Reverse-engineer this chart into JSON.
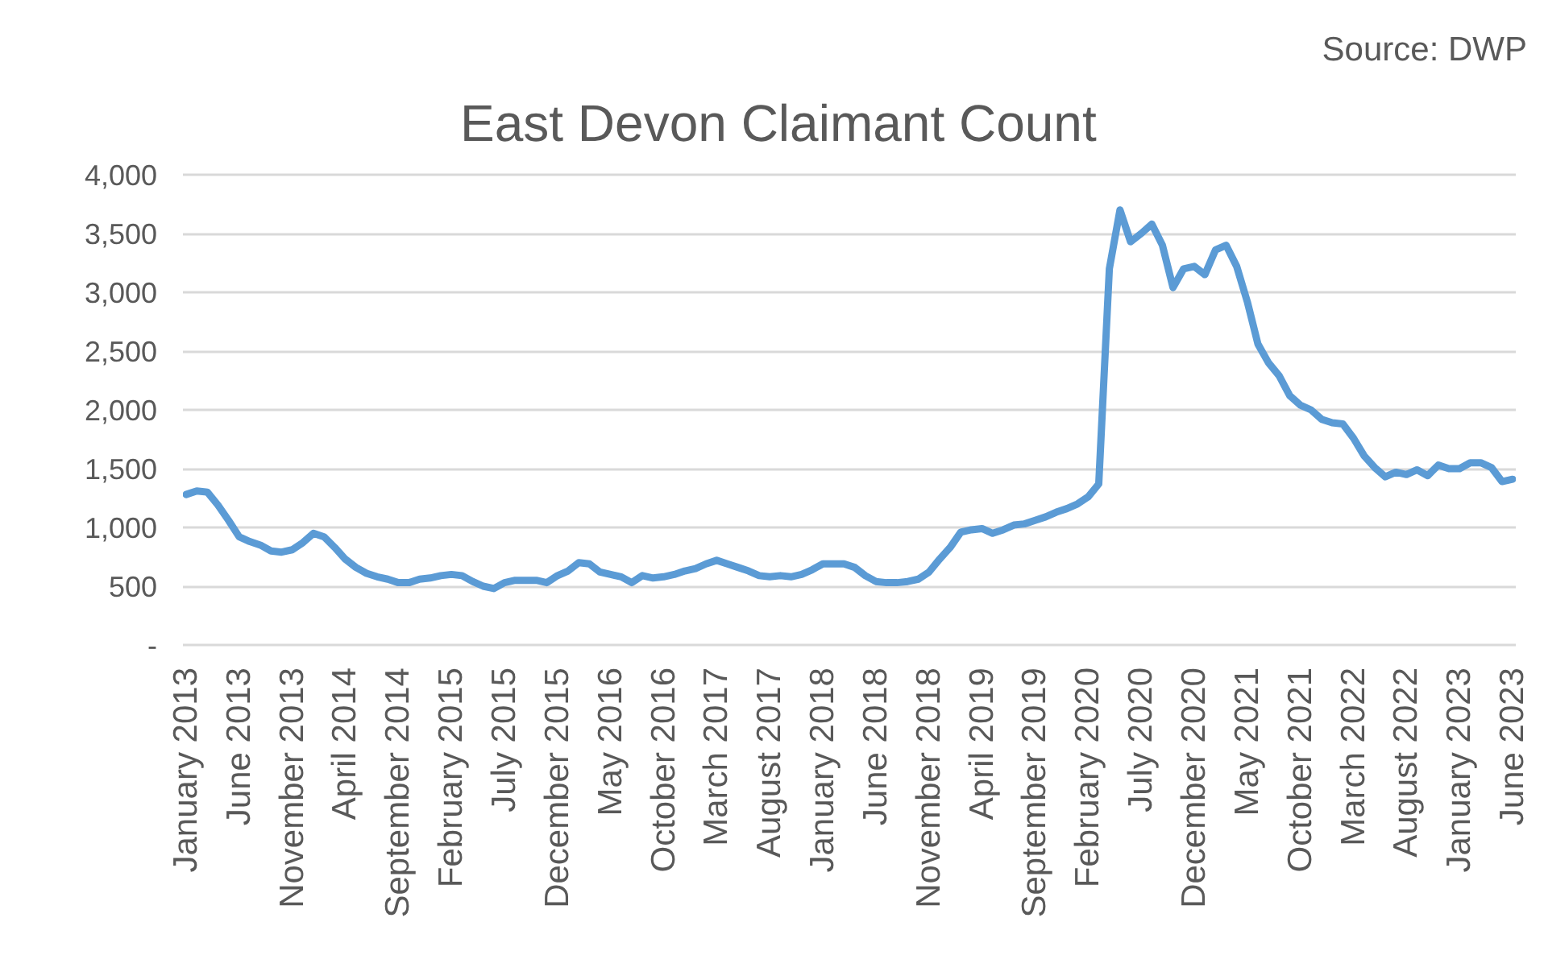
{
  "chart_data": {
    "type": "line",
    "title": "East Devon Claimant Count",
    "annotations": [
      "Source: DWP"
    ],
    "categories": [
      "January 2013",
      null,
      null,
      null,
      null,
      "June 2013",
      null,
      null,
      null,
      null,
      "November 2013",
      null,
      null,
      null,
      null,
      "April 2014",
      null,
      null,
      null,
      null,
      "September 2014",
      null,
      null,
      null,
      null,
      "February 2015",
      null,
      null,
      null,
      null,
      "July 2015",
      null,
      null,
      null,
      null,
      "December 2015",
      null,
      null,
      null,
      null,
      "May 2016",
      null,
      null,
      null,
      null,
      "October 2016",
      null,
      null,
      null,
      null,
      "March 2017",
      null,
      null,
      null,
      null,
      "August 2017",
      null,
      null,
      null,
      null,
      "January 2018",
      null,
      null,
      null,
      null,
      "June 2018",
      null,
      null,
      null,
      null,
      "November 2018",
      null,
      null,
      null,
      null,
      "April 2019",
      null,
      null,
      null,
      null,
      "September 2019",
      null,
      null,
      null,
      null,
      "February 2020",
      null,
      null,
      null,
      null,
      "July 2020",
      null,
      null,
      null,
      null,
      "December 2020",
      null,
      null,
      null,
      null,
      "May 2021",
      null,
      null,
      null,
      null,
      "October 2021",
      null,
      null,
      null,
      null,
      "March 2022",
      null,
      null,
      null,
      null,
      "August 2022",
      null,
      null,
      null,
      null,
      "January 2023",
      null,
      null,
      null,
      null,
      "June 2023"
    ],
    "series": [
      {
        "color": "#5b9bd5",
        "values": [
          1280,
          1310,
          1300,
          1190,
          1060,
          920,
          880,
          850,
          800,
          790,
          810,
          870,
          950,
          920,
          830,
          730,
          660,
          610,
          580,
          560,
          530,
          530,
          560,
          570,
          590,
          600,
          590,
          540,
          500,
          480,
          530,
          550,
          550,
          550,
          530,
          590,
          630,
          700,
          690,
          620,
          600,
          580,
          530,
          590,
          570,
          580,
          600,
          630,
          650,
          690,
          720,
          690,
          660,
          630,
          590,
          580,
          590,
          580,
          600,
          640,
          690,
          690,
          690,
          660,
          590,
          540,
          530,
          530,
          540,
          560,
          620,
          730,
          830,
          960,
          980,
          990,
          950,
          980,
          1020,
          1030,
          1060,
          1090,
          1130,
          1160,
          1200,
          1260,
          1370,
          3200,
          3700,
          3430,
          3500,
          3580,
          3400,
          3040,
          3200,
          3220,
          3150,
          3360,
          3400,
          3220,
          2920,
          2560,
          2400,
          2290,
          2120,
          2040,
          2000,
          1920,
          1890,
          1880,
          1760,
          1610,
          1510,
          1430,
          1470,
          1450,
          1490,
          1440,
          1530,
          1500,
          1500,
          1550,
          1550,
          1510,
          1390,
          1410
        ]
      }
    ],
    "ylim": [
      0,
      4000
    ],
    "yticks": [
      {
        "value": 0,
        "label": "-"
      },
      500,
      {
        "value": 1000,
        "label": "1,000"
      },
      {
        "value": 1500,
        "label": "1,500"
      },
      {
        "value": 2000,
        "label": "2,000"
      },
      {
        "value": 2500,
        "label": "2,500"
      },
      {
        "value": 3000,
        "label": "3,000"
      },
      {
        "value": 3500,
        "label": "3,500"
      },
      {
        "value": 4000,
        "label": "4,000"
      }
    ],
    "grid": "y",
    "line_style": "solid"
  }
}
